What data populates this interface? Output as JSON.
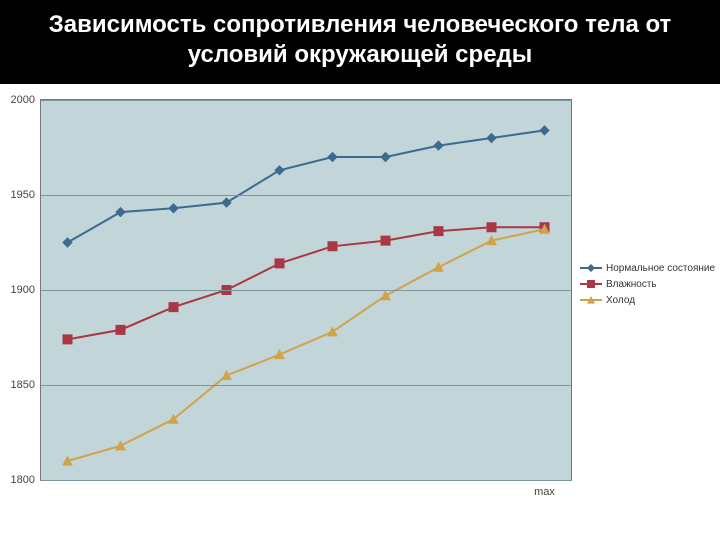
{
  "title": "Зависимость сопротивления человеческого тела от условий окружающей среды",
  "chart": {
    "type": "line",
    "background_color": "#c2d5d8",
    "grid_color": "#7d969b",
    "plot_border_color": "#777777",
    "ylim": [
      1800,
      2000
    ],
    "yticks": [
      1800,
      1850,
      1900,
      1950,
      2000
    ],
    "x_count": 10,
    "x_label_text": "max",
    "x_label_index": 9,
    "y_label_fontsize": 11,
    "x_label_fontsize": 11,
    "line_width": 2,
    "marker_size": 4.5,
    "series": [
      {
        "name": "Нормальное состояние",
        "color": "#3b6b8f",
        "marker": "diamond",
        "values": [
          1925,
          1941,
          1943,
          1946,
          1963,
          1970,
          1970,
          1976,
          1980,
          1984
        ]
      },
      {
        "name": "Влажность",
        "color": "#a93744",
        "marker": "square",
        "values": [
          1874,
          1879,
          1891,
          1900,
          1914,
          1923,
          1926,
          1931,
          1933,
          1933
        ]
      },
      {
        "name": "Холод",
        "color": "#d2a24a",
        "marker": "triangle",
        "values": [
          1810,
          1818,
          1832,
          1855,
          1866,
          1878,
          1897,
          1912,
          1926,
          1932
        ]
      }
    ],
    "legend": {
      "position": "right",
      "fontsize": 10
    },
    "title_fontsize": 24,
    "title_bg": "#000000",
    "title_color": "#ffffff"
  }
}
